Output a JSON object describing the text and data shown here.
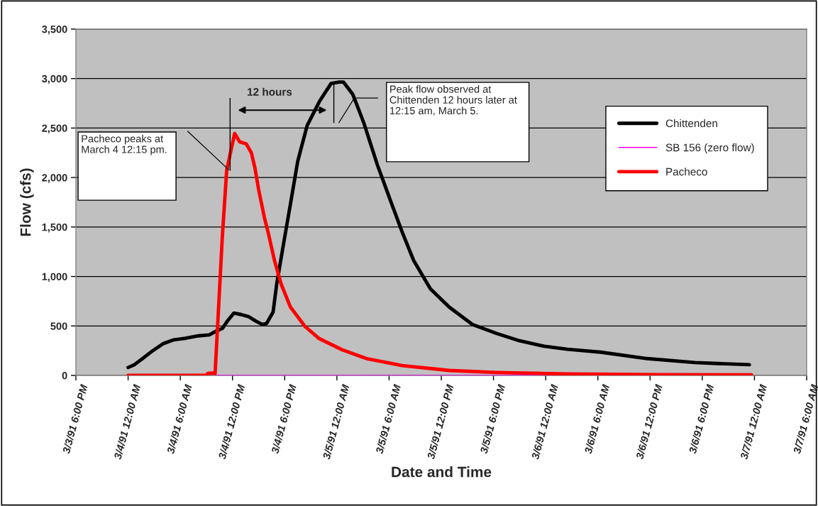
{
  "chart_data": {
    "type": "line",
    "xlabel": "Date and Time",
    "ylabel": "Flow (cfs)",
    "xlim": [
      "1991-03-03T18:00",
      "1991-03-07T06:00"
    ],
    "xticks": [
      {
        "value": "1991-03-03T18:00",
        "label": "3/3/91 6:00 PM"
      },
      {
        "value": "1991-03-04T00:00",
        "label": "3/4/91 12:00 AM"
      },
      {
        "value": "1991-03-04T06:00",
        "label": "3/4/91 6:00 AM"
      },
      {
        "value": "1991-03-04T12:00",
        "label": "3/4/91 12:00 PM"
      },
      {
        "value": "1991-03-04T18:00",
        "label": "3/4/91 6:00 PM"
      },
      {
        "value": "1991-03-05T00:00",
        "label": "3/5/91 12:00 AM"
      },
      {
        "value": "1991-03-05T06:00",
        "label": "3/5/91 6:00 AM"
      },
      {
        "value": "1991-03-05T12:00",
        "label": "3/5/91 12:00 PM"
      },
      {
        "value": "1991-03-05T18:00",
        "label": "3/5/91 6:00 PM"
      },
      {
        "value": "1991-03-06T00:00",
        "label": "3/6/91 12:00 AM"
      },
      {
        "value": "1991-03-06T06:00",
        "label": "3/6/91 6:00 AM"
      },
      {
        "value": "1991-03-06T12:00",
        "label": "3/6/91 12:00 PM"
      },
      {
        "value": "1991-03-06T18:00",
        "label": "3/6/91 6:00 PM"
      },
      {
        "value": "1991-03-07T00:00",
        "label": "3/7/91 12:00 AM"
      },
      {
        "value": "1991-03-07T06:00",
        "label": "3/7/91 6:00 AM"
      }
    ],
    "ylim": [
      0,
      3500
    ],
    "yticks": [
      0,
      500,
      {
        "value": 1000,
        "label": "1,000"
      },
      {
        "value": 1500,
        "label": "1,500"
      },
      {
        "value": 2000,
        "label": "2,000"
      },
      {
        "value": 2500,
        "label": "2,500"
      },
      {
        "value": 3000,
        "label": "3,000"
      },
      {
        "value": 3500,
        "label": "3,500"
      }
    ],
    "grid": "y",
    "legend": "top right",
    "marker": "none",
    "line_style": "solid",
    "series": [
      {
        "name": "Chittenden",
        "color": "#000000",
        "x": [
          "1991-03-04T00:00",
          "1991-03-04T00:45",
          "1991-03-04T01:35",
          "1991-03-04T02:50",
          "1991-03-04T04:00",
          "1991-03-04T05:15",
          "1991-03-04T06:35",
          "1991-03-04T08:05",
          "1991-03-04T09:20",
          "1991-03-04T10:10",
          "1991-03-04T10:50",
          "1991-03-04T11:25",
          "1991-03-04T12:10",
          "1991-03-04T13:00",
          "1991-03-04T13:50",
          "1991-03-04T14:40",
          "1991-03-04T15:25",
          "1991-03-04T15:55",
          "1991-03-04T16:40",
          "1991-03-04T17:05",
          "1991-03-04T17:55",
          "1991-03-04T18:40",
          "1991-03-04T19:30",
          "1991-03-04T20:35",
          "1991-03-04T22:00",
          "1991-03-04T23:20",
          "1991-03-05T00:15",
          "1991-03-05T00:45",
          "1991-03-05T01:50",
          "1991-03-05T03:05",
          "1991-03-05T04:40",
          "1991-03-05T06:05",
          "1991-03-05T07:30",
          "1991-03-05T08:50",
          "1991-03-05T10:45",
          "1991-03-05T12:55",
          "1991-03-05T15:35",
          "1991-03-05T18:20",
          "1991-03-05T21:00",
          "1991-03-05T23:50",
          "1991-03-06T02:30",
          "1991-03-06T06:20",
          "1991-03-06T11:40",
          "1991-03-06T17:10",
          "1991-03-06T19:50",
          "1991-03-06T23:25"
        ],
        "values": [
          80,
          110,
          165,
          250,
          320,
          360,
          375,
          400,
          410,
          450,
          475,
          550,
          630,
          615,
          595,
          550,
          515,
          525,
          640,
          925,
          1355,
          1735,
          2165,
          2525,
          2770,
          2950,
          2965,
          2965,
          2840,
          2555,
          2125,
          1785,
          1450,
          1160,
          875,
          690,
          515,
          425,
          350,
          295,
          265,
          235,
          170,
          130,
          120,
          108
        ]
      },
      {
        "name": "SB 156 (zero flow)",
        "color": "#ff00ff",
        "x": [
          "1991-03-04T10:00",
          "1991-03-06T23:40"
        ],
        "values": [
          0,
          0
        ]
      },
      {
        "name": "Pacheco",
        "color": "#ff0000",
        "x": [
          "1991-03-04T00:00",
          "1991-03-04T08:55",
          "1991-03-04T09:10",
          "1991-03-04T09:55",
          "1991-03-04T10:00",
          "1991-03-04T10:50",
          "1991-03-04T11:20",
          "1991-03-04T12:15",
          "1991-03-04T12:50",
          "1991-03-04T13:35",
          "1991-03-04T14:10",
          "1991-03-04T14:35",
          "1991-03-04T15:00",
          "1991-03-04T15:40",
          "1991-03-04T16:05",
          "1991-03-04T16:50",
          "1991-03-04T17:35",
          "1991-03-04T18:40",
          "1991-03-04T20:20",
          "1991-03-04T21:55",
          "1991-03-05T00:35",
          "1991-03-05T03:25",
          "1991-03-05T07:30",
          "1991-03-05T12:55",
          "1991-03-05T18:20",
          "1991-03-06T02:30",
          "1991-03-06T13:05",
          "1991-03-06T23:40"
        ],
        "values": [
          0,
          0,
          20,
          25,
          20,
          1405,
          2075,
          2445,
          2360,
          2340,
          2250,
          2095,
          1880,
          1595,
          1450,
          1160,
          925,
          690,
          495,
          375,
          260,
          170,
          100,
          50,
          30,
          15,
          8,
          5
        ]
      }
    ],
    "annotations": [
      "Pacheco peaks at\nMarch 4 12:15 pm.",
      "12 hours",
      "Peak flow observed at\nChittenden 12 hours later at\n12:15 am, March 5."
    ]
  }
}
